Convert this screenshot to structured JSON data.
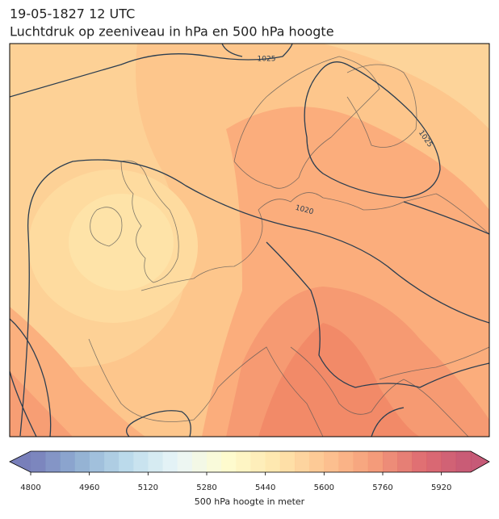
{
  "header": {
    "title": "19-05-1827 12 UTC",
    "subtitle": "Luchtdruk op zeeniveau in hPa en 500 hPa hoogte"
  },
  "map": {
    "isobar_labels": [
      "1025",
      "1025",
      "1020"
    ]
  },
  "colorbar": {
    "label": "500 hPa hoogte in meter",
    "range": [
      4800,
      6000
    ],
    "step": 40,
    "ticks": [
      4800,
      4960,
      5120,
      5280,
      5440,
      5600,
      5760,
      5920
    ],
    "cmap": [
      "#6068ae",
      "#7fa3cc",
      "#b2d6e8",
      "#e6f4f7",
      "#fefbc8",
      "#fee3a0",
      "#fdbb7f",
      "#f38c63",
      "#d9545a",
      "#bc3d5f"
    ]
  }
}
